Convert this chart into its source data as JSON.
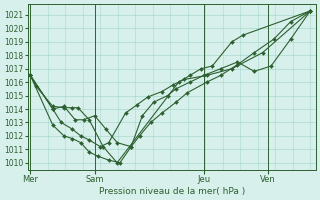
{
  "bg_color": "#d8f0ec",
  "plot_bg_color": "#d8f0ec",
  "grid_color": "#a8d8cc",
  "line_color": "#2d6030",
  "marker_color": "#2d6030",
  "xlabel": "Pression niveau de la mer( hPa )",
  "ylim": [
    1009.5,
    1021.8
  ],
  "yticks": [
    1010,
    1011,
    1012,
    1013,
    1014,
    1015,
    1016,
    1017,
    1018,
    1019,
    1020,
    1021
  ],
  "xtick_labels": [
    "Mer",
    "Sam",
    "Jeu",
    "Ven"
  ],
  "xtick_positions": [
    0.0,
    0.23,
    0.62,
    0.85
  ],
  "vline_positions": [
    0.0,
    0.23,
    0.62,
    0.85
  ],
  "series": [
    {
      "x": [
        0.0,
        0.02,
        0.08,
        0.12,
        0.15,
        0.17,
        0.21,
        0.26,
        0.31,
        0.53,
        0.57,
        0.61,
        0.65,
        0.72,
        0.76,
        1.0
      ],
      "y": [
        1016.5,
        1015.7,
        1014.2,
        1014.1,
        1014.1,
        1014.1,
        1013.2,
        1011.2,
        1010.0,
        1016.0,
        1016.5,
        1017.0,
        1017.2,
        1019.0,
        1019.5,
        1021.3
      ]
    },
    {
      "x": [
        0.0,
        0.08,
        0.11,
        0.15,
        0.18,
        0.21,
        0.25,
        0.28,
        0.34,
        0.38,
        0.42,
        0.47,
        0.51,
        0.55,
        0.63,
        0.72,
        0.83,
        1.0
      ],
      "y": [
        1016.5,
        1014.0,
        1013.0,
        1012.5,
        1012.0,
        1011.7,
        1011.2,
        1011.5,
        1013.7,
        1014.3,
        1014.9,
        1015.3,
        1015.8,
        1016.2,
        1016.5,
        1017.0,
        1018.2,
        1021.3
      ]
    },
    {
      "x": [
        0.0,
        0.08,
        0.12,
        0.15,
        0.18,
        0.21,
        0.24,
        0.28,
        0.32,
        0.36,
        0.39,
        0.43,
        0.47,
        0.52,
        0.56,
        0.63,
        0.68,
        0.74,
        0.8,
        0.87,
        0.93,
        1.0
      ],
      "y": [
        1016.5,
        1012.8,
        1012.0,
        1011.8,
        1011.5,
        1010.8,
        1010.5,
        1010.2,
        1010.0,
        1011.2,
        1012.0,
        1013.0,
        1013.7,
        1014.5,
        1015.2,
        1016.0,
        1016.5,
        1017.3,
        1018.2,
        1019.2,
        1020.5,
        1021.3
      ]
    },
    {
      "x": [
        0.0,
        0.08,
        0.12,
        0.16,
        0.19,
        0.23,
        0.27,
        0.31,
        0.36,
        0.4,
        0.44,
        0.49,
        0.52,
        0.57,
        0.62,
        0.68,
        0.74,
        0.8,
        0.86,
        0.93,
        1.0
      ],
      "y": [
        1016.5,
        1014.0,
        1014.2,
        1013.2,
        1013.2,
        1013.5,
        1012.5,
        1011.5,
        1011.2,
        1013.5,
        1014.5,
        1015.0,
        1015.5,
        1016.0,
        1016.5,
        1017.0,
        1017.5,
        1016.8,
        1017.2,
        1019.2,
        1021.3
      ]
    }
  ]
}
